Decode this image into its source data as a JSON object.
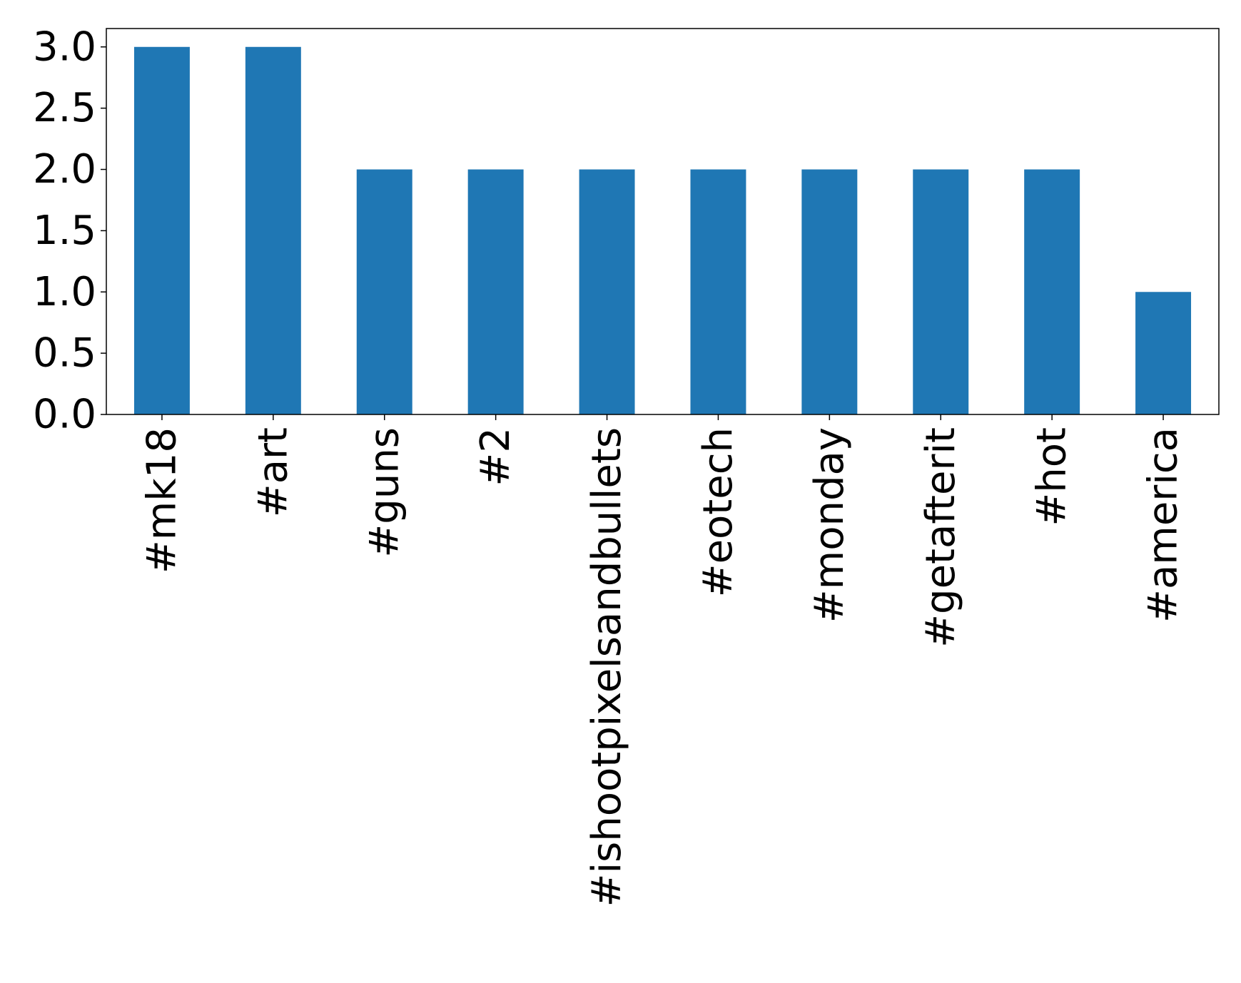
{
  "chart_data": {
    "type": "bar",
    "categories": [
      "#mk18",
      "#art",
      "#guns",
      "#2",
      "#ishootpixelsandbullets",
      "#eotech",
      "#monday",
      "#getafterit",
      "#hot",
      "#america"
    ],
    "values": [
      3,
      3,
      2,
      2,
      2,
      2,
      2,
      2,
      2,
      1
    ],
    "color": "#1f77b4",
    "ylim": [
      0,
      3.15
    ],
    "yticks": [
      {
        "value": 0,
        "label": "0.0"
      },
      0.5,
      {
        "value": 1,
        "label": "1.0"
      },
      1.5,
      {
        "value": 2,
        "label": "2.0"
      },
      2.5,
      {
        "value": 3,
        "label": "3.0"
      }
    ],
    "grid": false
  }
}
